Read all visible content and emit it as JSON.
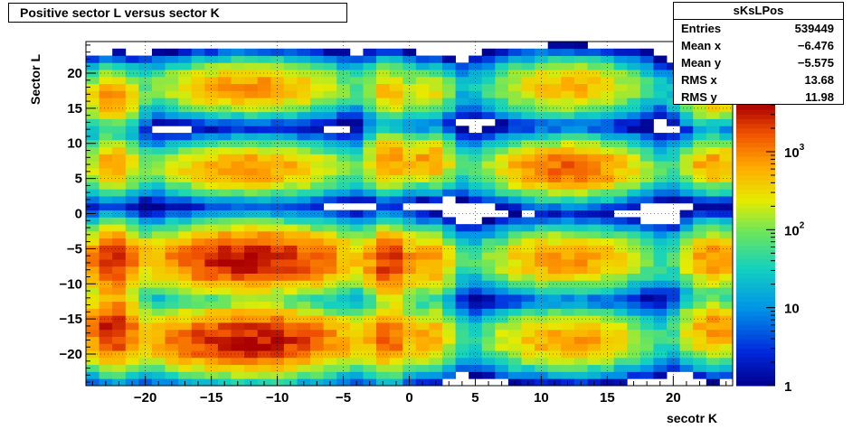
{
  "chart_data": {
    "type": "heatmap",
    "title": "Positive sector L versus sector K",
    "xlabel": "secotr K",
    "ylabel": "Sector L",
    "xlim": [
      -24.5,
      24.5
    ],
    "ylim": [
      -24.5,
      24.5
    ],
    "x_ticks": [
      -20,
      -15,
      -10,
      -5,
      0,
      5,
      10,
      15,
      20
    ],
    "y_ticks": [
      -20,
      -15,
      -10,
      -5,
      0,
      5,
      10,
      15,
      20
    ],
    "z_scale": "log",
    "zlim": [
      1,
      4000
    ],
    "z_ticks": [
      {
        "value": 1,
        "label": "1"
      },
      {
        "value": 10,
        "label": "10"
      },
      {
        "value": 100,
        "label": "10",
        "sup": "2"
      },
      {
        "value": 1000,
        "label": "10",
        "sup": "3"
      }
    ],
    "grid": true,
    "stats": {
      "name": "sKsLPos",
      "rows": [
        {
          "label": "Entries",
          "value": "539449"
        },
        {
          "label": "Mean x",
          "value": "−6.476"
        },
        {
          "label": "Mean y",
          "value": "−5.575"
        },
        {
          "label": "RMS x",
          "value": "13.68"
        },
        {
          "label": "RMS y",
          "value": "11.98"
        }
      ]
    },
    "blobs": [
      {
        "cx": -22.5,
        "cy": -16.5,
        "sx": 1.0,
        "sy": 2.3,
        "peak": 3000
      },
      {
        "cx": -22.5,
        "cy": -7.0,
        "sx": 1.0,
        "sy": 2.2,
        "peak": 3000
      },
      {
        "cx": -22.5,
        "cy": 7.0,
        "sx": 1.0,
        "sy": 1.8,
        "peak": 700
      },
      {
        "cx": -22.5,
        "cy": 16.5,
        "sx": 1.0,
        "sy": 1.8,
        "peak": 900
      },
      {
        "cx": -12.0,
        "cy": -18.0,
        "sx": 3.8,
        "sy": 2.0,
        "peak": 3500
      },
      {
        "cx": -12.0,
        "cy": -6.5,
        "sx": 3.8,
        "sy": 2.0,
        "peak": 3500
      },
      {
        "cx": -12.0,
        "cy": 6.5,
        "sx": 3.5,
        "sy": 1.6,
        "peak": 900
      },
      {
        "cx": -12.0,
        "cy": 18.0,
        "sx": 3.5,
        "sy": 1.6,
        "peak": 900
      },
      {
        "cx": -1.5,
        "cy": -17.5,
        "sx": 0.9,
        "sy": 2.2,
        "peak": 1500
      },
      {
        "cx": -1.5,
        "cy": -7.0,
        "sx": 0.9,
        "sy": 2.2,
        "peak": 2500
      },
      {
        "cx": -1.5,
        "cy": 7.5,
        "sx": 0.9,
        "sy": 1.8,
        "peak": 900
      },
      {
        "cx": -1.5,
        "cy": 17.5,
        "sx": 0.9,
        "sy": 1.8,
        "peak": 500
      },
      {
        "cx": 1.5,
        "cy": -17.5,
        "sx": 1.0,
        "sy": 2.0,
        "peak": 700
      },
      {
        "cx": 1.5,
        "cy": -7.0,
        "sx": 1.0,
        "sy": 2.0,
        "peak": 900
      },
      {
        "cx": 1.5,
        "cy": 7.5,
        "sx": 1.0,
        "sy": 1.6,
        "peak": 800
      },
      {
        "cx": 1.5,
        "cy": 17.5,
        "sx": 1.0,
        "sy": 1.6,
        "peak": 300
      },
      {
        "cx": 12.0,
        "cy": -18.0,
        "sx": 3.0,
        "sy": 1.8,
        "peak": 800
      },
      {
        "cx": 12.0,
        "cy": -6.5,
        "sx": 3.0,
        "sy": 1.8,
        "peak": 900
      },
      {
        "cx": 12.0,
        "cy": 6.5,
        "sx": 2.8,
        "sy": 1.7,
        "peak": 1500
      },
      {
        "cx": 12.0,
        "cy": 18.0,
        "sx": 2.8,
        "sy": 1.7,
        "peak": 600
      },
      {
        "cx": 23.0,
        "cy": -16.5,
        "sx": 1.2,
        "sy": 2.0,
        "peak": 900
      },
      {
        "cx": 23.0,
        "cy": -6.5,
        "sx": 1.2,
        "sy": 2.0,
        "peak": 900
      },
      {
        "cx": 23.0,
        "cy": 7.0,
        "sx": 1.2,
        "sy": 1.6,
        "peak": 800
      },
      {
        "cx": 23.0,
        "cy": 16.5,
        "sx": 1.2,
        "sy": 1.6,
        "peak": 500
      }
    ]
  }
}
